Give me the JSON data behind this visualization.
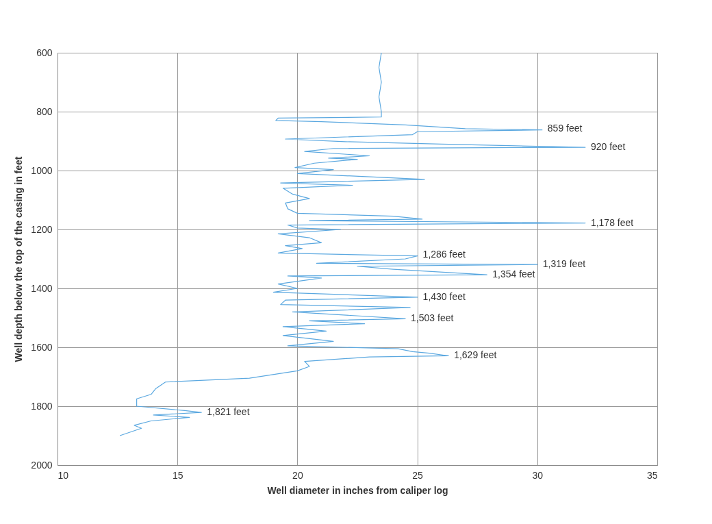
{
  "chart_data": {
    "type": "line",
    "xlabel": "Well diameter in inches from caliper log",
    "ylabel": "Well depth below the top of the casing in feet",
    "xlim": [
      10,
      35
    ],
    "xticks": [
      10,
      15,
      20,
      25,
      30,
      35
    ],
    "ylim": [
      2000,
      600
    ],
    "yticks": [
      600,
      800,
      1000,
      1200,
      1400,
      1600,
      1800,
      2000
    ],
    "grid": true,
    "marker": "none",
    "line_style": "solid",
    "series": [
      {
        "color": "#5ba8e0",
        "x": [
          23.5,
          23.4,
          23.5,
          23.4,
          23.5,
          23.5,
          19.2,
          19.1,
          21,
          24.5,
          27,
          30.2,
          25,
          24.8,
          19.5,
          22,
          26,
          28.5,
          32,
          21.5,
          20.3,
          23,
          21.3,
          22.5,
          20.7,
          19.9,
          21.5,
          20,
          25.3,
          19.3,
          22.3,
          19.4,
          19.8,
          20.5,
          19.5,
          19.6,
          20,
          24,
          25.2,
          20.5,
          32,
          19.6,
          20,
          21.8,
          19.2,
          20.5,
          21,
          19.5,
          20.2,
          19.2,
          25,
          24.5,
          20.8,
          30,
          22.5,
          24,
          27.9,
          19.6,
          21,
          19.2,
          20,
          19,
          25,
          19.5,
          19.3,
          24.7,
          19.8,
          24.5,
          20.5,
          22.8,
          19.4,
          21.2,
          19.4,
          21.5,
          19.6,
          24.2,
          24.8,
          25.5,
          26.3,
          23,
          20.3,
          20.5,
          20,
          18,
          14.5,
          14.1,
          13.9,
          13.3,
          13.3,
          15.3,
          16,
          14,
          15.5,
          13.9,
          13.2,
          13.5,
          12.6
        ],
        "values": [
          600,
          650,
          700,
          750,
          800,
          818,
          822,
          830,
          834,
          845,
          858,
          862,
          868,
          878,
          893,
          902,
          910,
          915,
          921,
          925,
          935,
          950,
          958,
          962,
          975,
          990,
          997,
          1010,
          1030,
          1042,
          1050,
          1060,
          1080,
          1095,
          1110,
          1130,
          1145,
          1155,
          1165,
          1170,
          1178,
          1185,
          1195,
          1200,
          1215,
          1228,
          1245,
          1255,
          1265,
          1280,
          1290,
          1300,
          1315,
          1319,
          1325,
          1335,
          1354,
          1358,
          1365,
          1385,
          1400,
          1413,
          1430,
          1440,
          1455,
          1465,
          1480,
          1503,
          1510,
          1520,
          1530,
          1545,
          1560,
          1580,
          1595,
          1605,
          1615,
          1620,
          1629,
          1633,
          1648,
          1665,
          1680,
          1705,
          1718,
          1740,
          1760,
          1775,
          1800,
          1815,
          1821,
          1830,
          1838,
          1850,
          1865,
          1875,
          1900
        ]
      }
    ],
    "annotations": [
      {
        "text": "859 feet",
        "x": 30.2,
        "y": 859
      },
      {
        "text": "920 feet",
        "x": 32,
        "y": 920
      },
      {
        "text": "1,178 feet",
        "x": 32,
        "y": 1178
      },
      {
        "text": "1,286 feet",
        "x": 25,
        "y": 1286
      },
      {
        "text": "1,319 feet",
        "x": 30,
        "y": 1319
      },
      {
        "text": "1,354 feet",
        "x": 27.9,
        "y": 1354
      },
      {
        "text": "1,430 feet",
        "x": 25,
        "y": 1430
      },
      {
        "text": "1,503 feet",
        "x": 24.5,
        "y": 1503
      },
      {
        "text": "1,629 feet",
        "x": 26.3,
        "y": 1629
      },
      {
        "text": "1,821 feet",
        "x": 16,
        "y": 1821
      }
    ]
  }
}
